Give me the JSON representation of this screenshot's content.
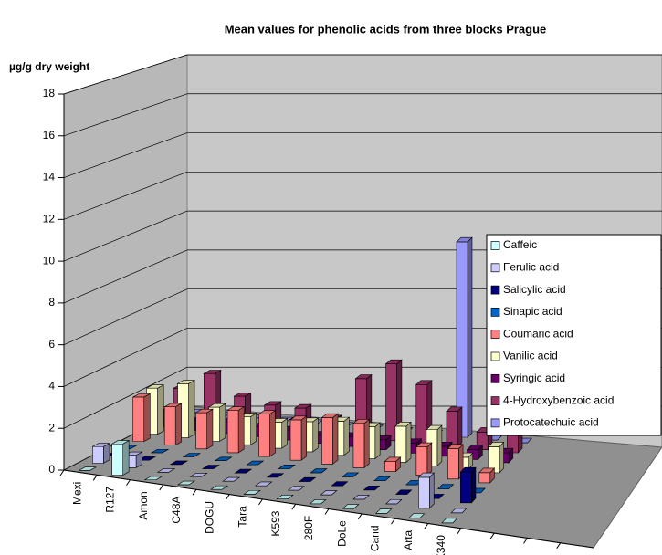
{
  "chart_data": {
    "type": "bar3d",
    "title": "Mean values for phenolic acids from three blocks Prague",
    "y_label": "µg/g dry weight",
    "categories": [
      "Mexi",
      "R127",
      "Amon",
      "C48A",
      "DOGU",
      "Tara",
      "K593",
      "280F",
      "DoLe",
      "Cand",
      "Arta",
      "K340",
      null,
      null,
      null,
      null
    ],
    "ylim": [
      0,
      18
    ],
    "yticks": [
      0,
      2,
      4,
      6,
      8,
      10,
      12,
      14,
      16,
      18
    ],
    "grid": true,
    "legend": "right",
    "series": [
      {
        "name": "Caffeic",
        "color": "#ccffff",
        "values": [
          0,
          1.5,
          0,
          0,
          0,
          0,
          0,
          0,
          0,
          0,
          0,
          0,
          null,
          null,
          null,
          null
        ]
      },
      {
        "name": "Ferulic acid",
        "color": "#ccccff",
        "values": [
          0.8,
          0.6,
          0,
          0,
          0,
          0,
          0,
          0,
          0,
          0,
          1.5,
          0,
          null,
          null,
          null,
          null
        ]
      },
      {
        "name": "Salicylic acid",
        "color": "#000080",
        "values": [
          0,
          0,
          0,
          0,
          0,
          0,
          0,
          0,
          0,
          0,
          0,
          1.5,
          null,
          null,
          null,
          null
        ]
      },
      {
        "name": "Sinapic acid",
        "color": "#0066cc",
        "values": [
          0,
          0,
          0,
          0,
          0,
          0,
          0,
          0,
          0,
          0,
          0,
          0,
          null,
          null,
          null,
          null
        ]
      },
      {
        "name": "Coumaric acid",
        "color": "#ff8080",
        "values": [
          2.2,
          1.9,
          1.8,
          2.1,
          2.1,
          2.0,
          2.3,
          2.2,
          0.5,
          1.4,
          1.5,
          0.5,
          null,
          null,
          null,
          null
        ]
      },
      {
        "name": "Vanilic acid",
        "color": "#ffffcc",
        "values": [
          2.3,
          2.7,
          1.7,
          1.4,
          1.3,
          1.5,
          1.7,
          1.6,
          1.8,
          1.8,
          0.6,
          1.3,
          null,
          null,
          null,
          null
        ]
      },
      {
        "name": "Syringic acid",
        "color": "#660066",
        "values": [
          0.8,
          0.5,
          0.6,
          0.5,
          0.5,
          0.4,
          0.5,
          0.5,
          0.5,
          0.5,
          0.5,
          0.5,
          null,
          null,
          null,
          null
        ]
      },
      {
        "name": "4-Hydroxybenzoic acid",
        "color": "#993366",
        "values": [
          1.6,
          2.5,
          1.5,
          1.2,
          1.2,
          0.8,
          3.0,
          3.9,
          3.0,
          1.8,
          0.9,
          2.2,
          null,
          null,
          null,
          null
        ]
      },
      {
        "name": "Protocatechuic acid",
        "color": "#9999ff",
        "values": [
          0,
          0,
          0,
          0,
          0,
          0,
          0,
          0,
          0,
          10,
          0,
          0,
          null,
          null,
          null,
          null
        ]
      }
    ]
  }
}
